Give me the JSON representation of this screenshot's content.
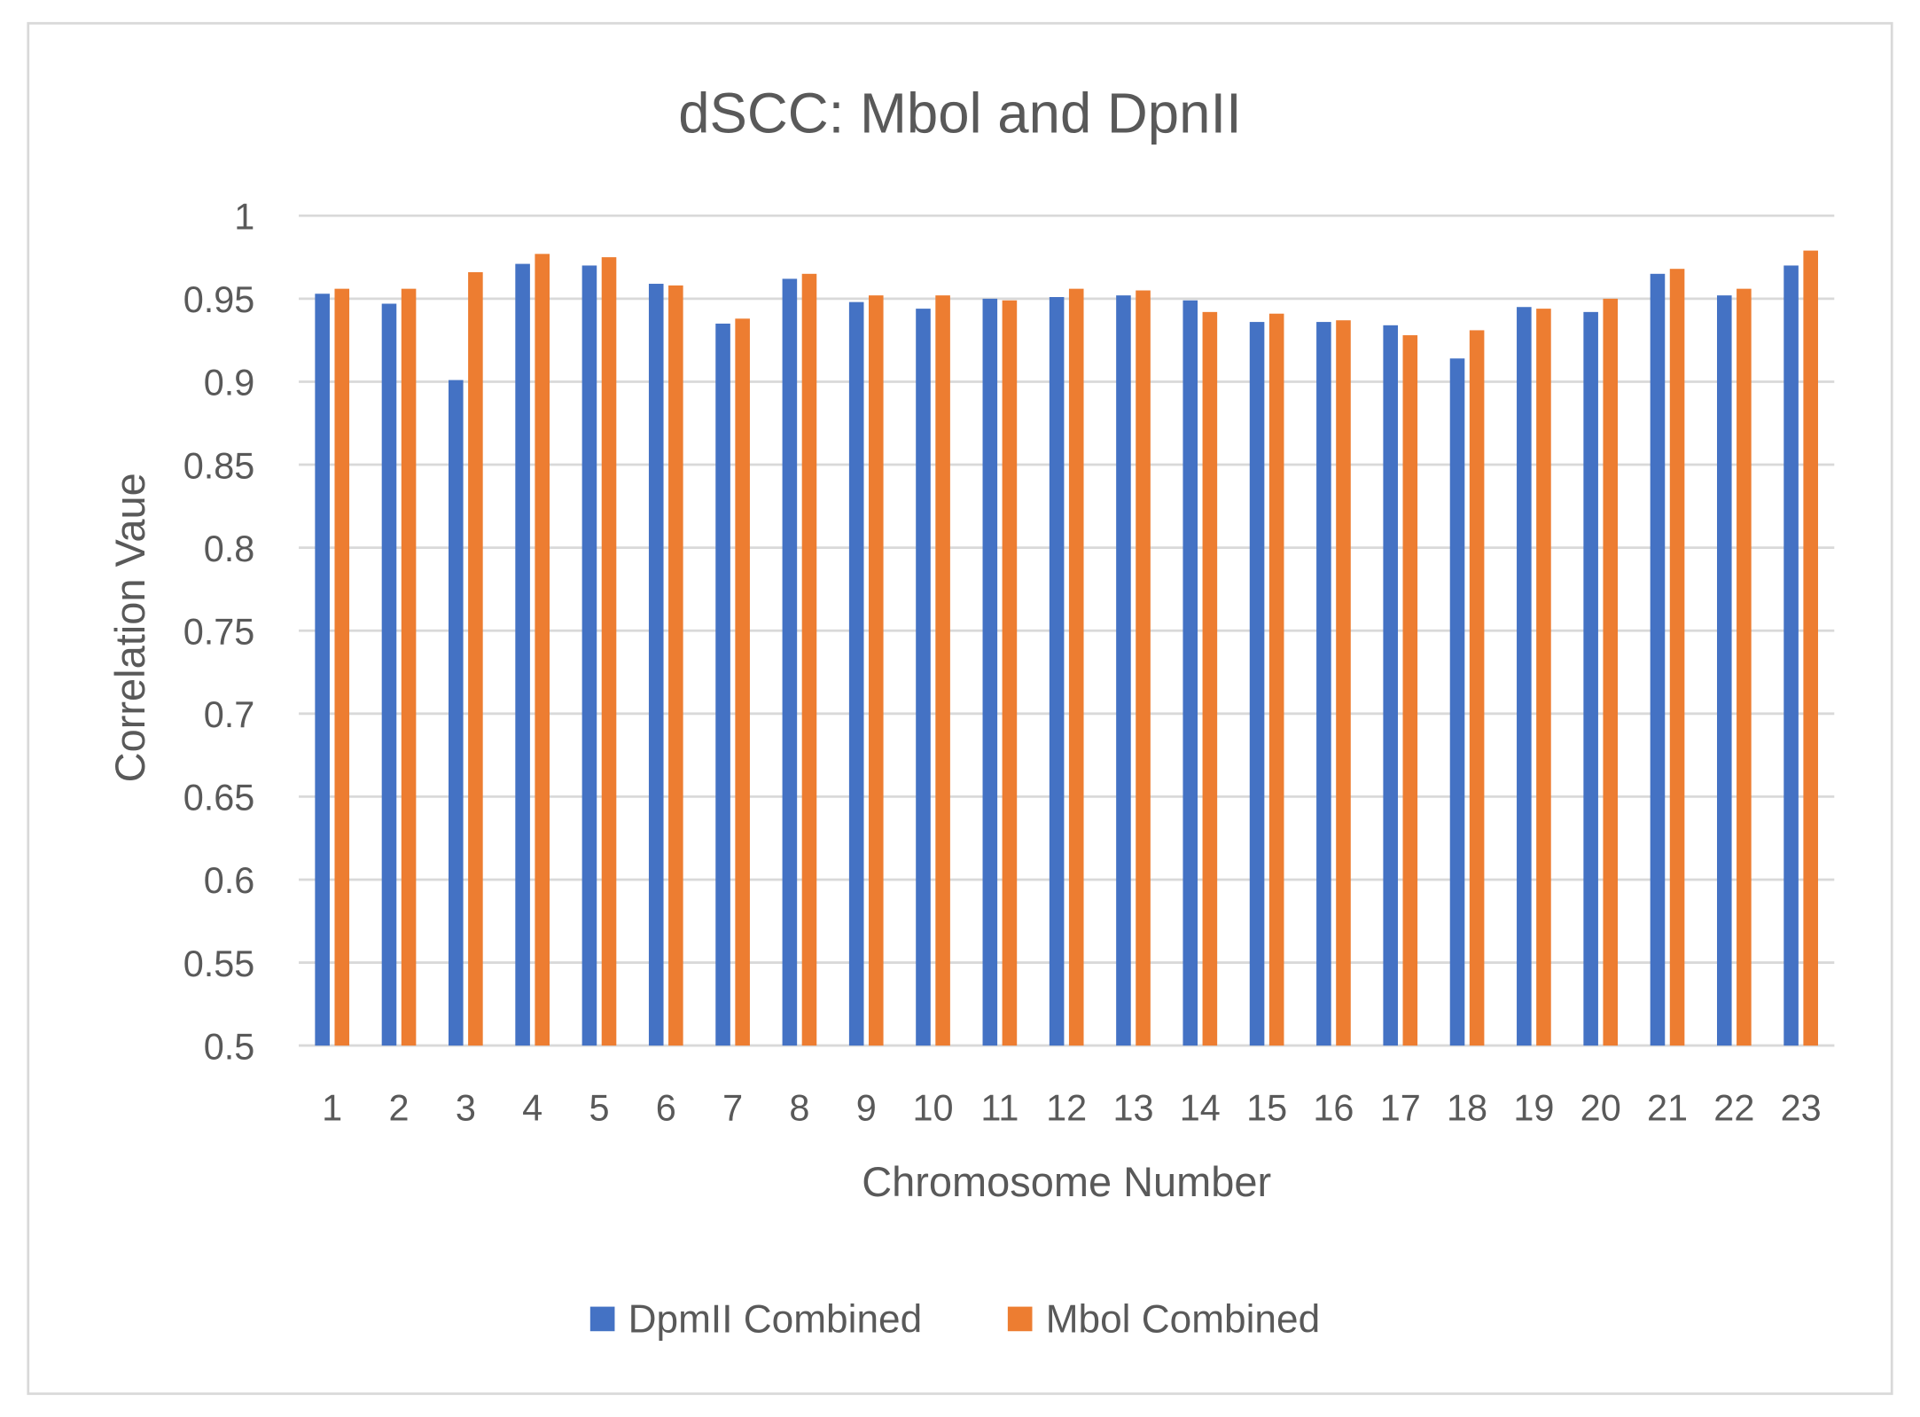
{
  "chart_data": {
    "type": "bar",
    "title": "dSCC: Mbol and DpnII",
    "xlabel": "Chromosome Number",
    "ylabel": "Correlation Vaue",
    "ylim": [
      0.5,
      1
    ],
    "yticks": [
      "0.5",
      "0.55",
      "0.6",
      "0.65",
      "0.7",
      "0.75",
      "0.8",
      "0.85",
      "0.9",
      "0.95",
      "1"
    ],
    "ytick_values": [
      0.5,
      0.55,
      0.6,
      0.65,
      0.7,
      0.75,
      0.8,
      0.85,
      0.9,
      0.95,
      1
    ],
    "grid": true,
    "legend_position": "bottom",
    "categories": [
      "1",
      "2",
      "3",
      "4",
      "5",
      "6",
      "7",
      "8",
      "9",
      "10",
      "11",
      "12",
      "13",
      "14",
      "15",
      "16",
      "17",
      "18",
      "19",
      "20",
      "21",
      "22",
      "23"
    ],
    "series": [
      {
        "name": "DpmII Combined",
        "color": "#4472C4",
        "values": [
          0.953,
          0.947,
          0.901,
          0.971,
          0.97,
          0.959,
          0.935,
          0.962,
          0.948,
          0.944,
          0.95,
          0.951,
          0.952,
          0.949,
          0.936,
          0.936,
          0.934,
          0.914,
          0.945,
          0.942,
          0.965,
          0.952,
          0.97
        ]
      },
      {
        "name": "Mbol Combined",
        "color": "#ED7D31",
        "values": [
          0.956,
          0.956,
          0.966,
          0.977,
          0.975,
          0.958,
          0.938,
          0.965,
          0.952,
          0.952,
          0.949,
          0.956,
          0.955,
          0.942,
          0.941,
          0.937,
          0.928,
          0.931,
          0.944,
          0.95,
          0.968,
          0.956,
          0.979
        ]
      }
    ]
  }
}
